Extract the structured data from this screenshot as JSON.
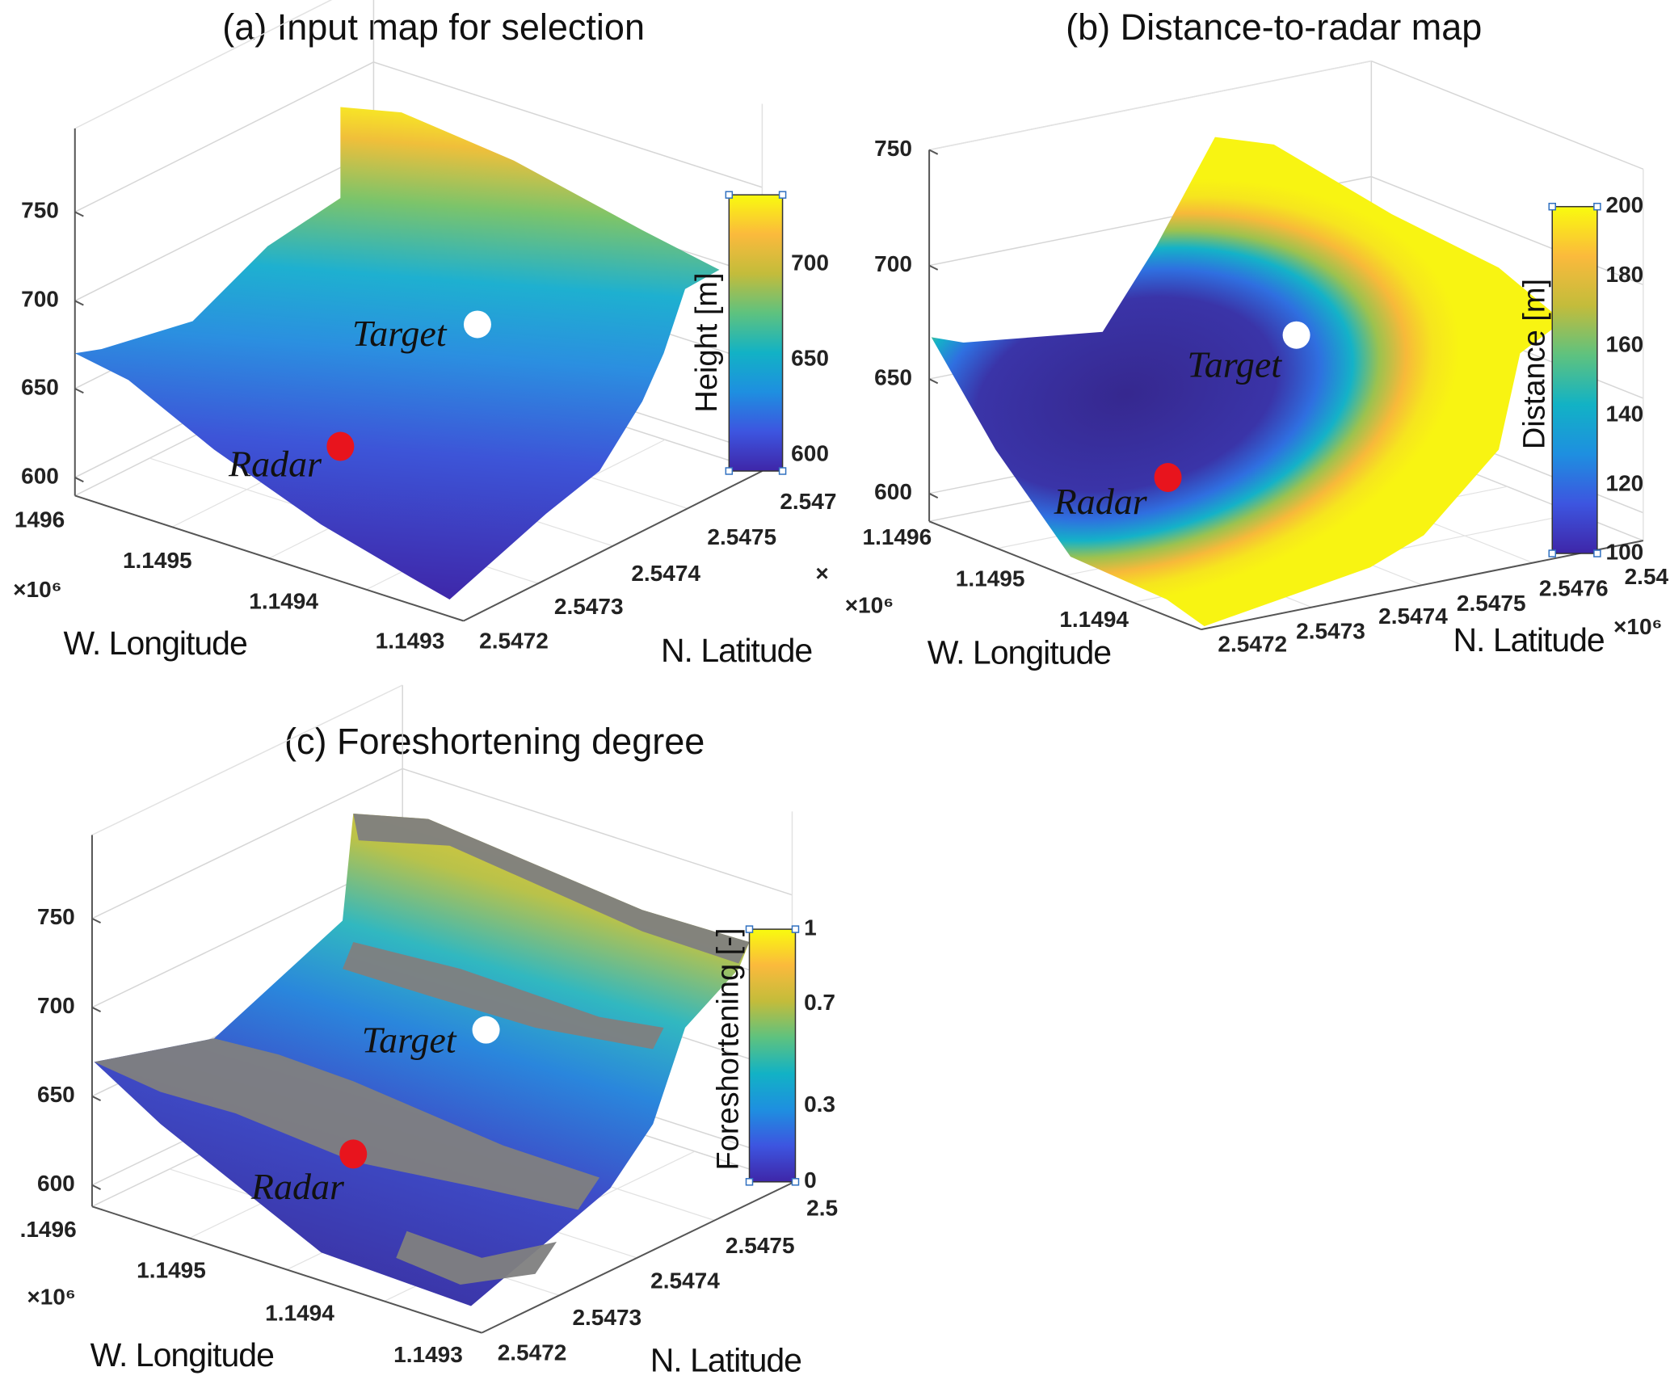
{
  "colormap": "parula",
  "colormap_stops": [
    "#3e26a8",
    "#3d55e0",
    "#1e8fe0",
    "#12b2c5",
    "#5ec27f",
    "#c3bc3b",
    "#fbba3c",
    "#f9fb0e"
  ],
  "colors": {
    "target_marker": "#ffffff",
    "radar_marker": "#e8141d",
    "no_data": "#808080"
  },
  "chart_data": [
    {
      "type": "scatter",
      "title": "(a) Input map for selection",
      "xlabel": "W. Longitude",
      "ylabel": "N. Latitude",
      "x_exponent": "×10⁶",
      "y_exponent": "×",
      "xticks": [
        "1496",
        "1.1495",
        "1.1494",
        "1.1493"
      ],
      "yticks": [
        "2.5472",
        "2.5473",
        "2.5474",
        "2.5475",
        "2.547"
      ],
      "zticks": [
        "750",
        "700",
        "650",
        "600"
      ],
      "colorbar": {
        "label": "Height [m]",
        "ticks": [
          "700",
          "650",
          "600"
        ],
        "range": [
          592,
          737
        ]
      },
      "annotations": [
        {
          "label": "Target",
          "marker": "white"
        },
        {
          "label": "Radar",
          "marker": "red"
        }
      ]
    },
    {
      "type": "scatter",
      "title": "(b) Distance-to-radar map",
      "xlabel": "W. Longitude",
      "ylabel": "N. Latitude",
      "x_exponent": "×10⁶",
      "y_exponent": "×10⁶",
      "xticks": [
        "1.1496",
        "1.1495",
        "1.1494"
      ],
      "yticks": [
        "2.5472",
        "2.5473",
        "2.5474",
        "2.5475",
        "2.5476",
        "2.54"
      ],
      "zticks": [
        "750",
        "700",
        "650",
        "600"
      ],
      "colorbar": {
        "label": "Distance [m]",
        "ticks": [
          "200",
          "180",
          "160",
          "140",
          "120",
          "100"
        ],
        "range": [
          100,
          200
        ]
      },
      "annotations": [
        {
          "label": "Target",
          "marker": "white"
        },
        {
          "label": "Radar",
          "marker": "red"
        }
      ]
    },
    {
      "type": "scatter",
      "title": "(c) Foreshortening degree",
      "xlabel": "W. Longitude",
      "ylabel": "N. Latitude",
      "x_exponent": "×10⁶",
      "xticks": [
        ".1496",
        "1.1495",
        "1.1494",
        "1.1493"
      ],
      "yticks": [
        "2.5472",
        "2.5473",
        "2.5474",
        "2.5475",
        "2.5"
      ],
      "zticks": [
        "750",
        "700",
        "650",
        "600"
      ],
      "colorbar": {
        "label": "Foreshortening [-]",
        "ticks": [
          "1",
          "0.7",
          "0.3",
          "0"
        ],
        "range": [
          0,
          1
        ]
      },
      "annotations": [
        {
          "label": "Target",
          "marker": "white"
        },
        {
          "label": "Radar",
          "marker": "red"
        }
      ]
    }
  ]
}
